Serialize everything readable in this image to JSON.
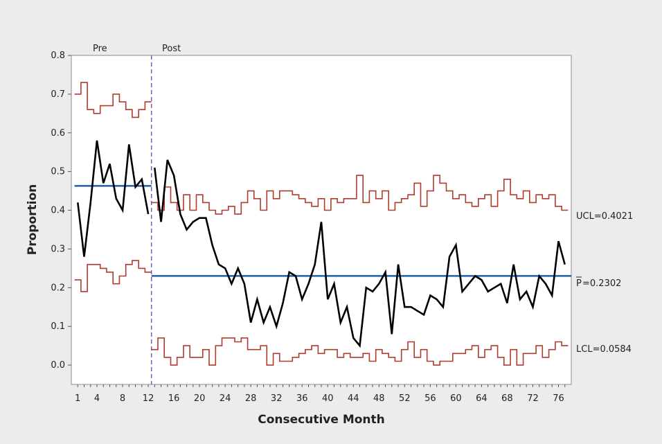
{
  "chart_data": {
    "type": "line",
    "title": "",
    "xlabel": "Consecutive Month",
    "ylabel": "Proportion",
    "xlim": [
      0,
      78
    ],
    "ylim": [
      -0.05,
      0.8
    ],
    "x_ticks": [
      1,
      4,
      8,
      12,
      16,
      20,
      24,
      28,
      32,
      36,
      40,
      44,
      48,
      52,
      56,
      60,
      64,
      68,
      72,
      76
    ],
    "y_ticks": [
      0.0,
      0.1,
      0.2,
      0.3,
      0.4,
      0.5,
      0.6,
      0.7,
      0.8
    ],
    "grid": false,
    "phase_split": 12.5,
    "phase_labels": [
      "Pre",
      "Post"
    ],
    "colors": {
      "proportion": "#000000",
      "limits": "#b03a2e",
      "center": "#1f5fa8",
      "split": "#7a5cb8",
      "background": "#ececec",
      "plot_bg": "#ffffff"
    },
    "series": [
      {
        "name": "Proportion",
        "x": [
          1,
          2,
          3,
          4,
          5,
          6,
          7,
          8,
          9,
          10,
          11,
          12,
          13,
          14,
          15,
          16,
          17,
          18,
          19,
          20,
          21,
          22,
          23,
          24,
          25,
          26,
          27,
          28,
          29,
          30,
          31,
          32,
          33,
          34,
          35,
          36,
          37,
          38,
          39,
          40,
          41,
          42,
          43,
          44,
          45,
          46,
          47,
          48,
          49,
          50,
          51,
          52,
          53,
          54,
          55,
          56,
          57,
          58,
          59,
          60,
          61,
          62,
          63,
          64,
          65,
          66,
          67,
          68,
          69,
          70,
          71,
          72,
          73,
          74,
          75,
          76,
          77
        ],
        "values": [
          0.42,
          0.28,
          0.42,
          0.58,
          0.47,
          0.52,
          0.43,
          0.4,
          0.57,
          0.46,
          0.48,
          0.39,
          0.51,
          0.37,
          0.53,
          0.49,
          0.39,
          0.35,
          0.37,
          0.38,
          0.38,
          0.31,
          0.26,
          0.25,
          0.21,
          0.25,
          0.21,
          0.11,
          0.17,
          0.11,
          0.15,
          0.1,
          0.16,
          0.24,
          0.23,
          0.17,
          0.21,
          0.26,
          0.37,
          0.17,
          0.21,
          0.11,
          0.15,
          0.07,
          0.05,
          0.2,
          0.19,
          0.21,
          0.24,
          0.08,
          0.26,
          0.15,
          0.15,
          0.14,
          0.13,
          0.18,
          0.17,
          0.15,
          0.28,
          0.31,
          0.19,
          0.21,
          0.23,
          0.22,
          0.19,
          0.2,
          0.21,
          0.16,
          0.26,
          0.17,
          0.19,
          0.15,
          0.23,
          0.21,
          0.18,
          0.32,
          0.26
        ]
      },
      {
        "name": "UCL",
        "x": [
          1,
          2,
          3,
          4,
          5,
          6,
          7,
          8,
          9,
          10,
          11,
          12,
          13,
          14,
          15,
          16,
          17,
          18,
          19,
          20,
          21,
          22,
          23,
          24,
          25,
          26,
          27,
          28,
          29,
          30,
          31,
          32,
          33,
          34,
          35,
          36,
          37,
          38,
          39,
          40,
          41,
          42,
          43,
          44,
          45,
          46,
          47,
          48,
          49,
          50,
          51,
          52,
          53,
          54,
          55,
          56,
          57,
          58,
          59,
          60,
          61,
          62,
          63,
          64,
          65,
          66,
          67,
          68,
          69,
          70,
          71,
          72,
          73,
          74,
          75,
          76,
          77
        ],
        "values": [
          0.7,
          0.73,
          0.66,
          0.65,
          0.67,
          0.67,
          0.7,
          0.68,
          0.66,
          0.64,
          0.66,
          0.68,
          0.42,
          0.4,
          0.46,
          0.42,
          0.4,
          0.44,
          0.4,
          0.44,
          0.42,
          0.4,
          0.39,
          0.4,
          0.41,
          0.39,
          0.42,
          0.45,
          0.43,
          0.4,
          0.45,
          0.43,
          0.45,
          0.45,
          0.44,
          0.43,
          0.42,
          0.41,
          0.43,
          0.4,
          0.43,
          0.42,
          0.43,
          0.43,
          0.49,
          0.42,
          0.45,
          0.43,
          0.45,
          0.4,
          0.42,
          0.43,
          0.44,
          0.47,
          0.41,
          0.45,
          0.49,
          0.47,
          0.45,
          0.43,
          0.44,
          0.42,
          0.41,
          0.43,
          0.44,
          0.41,
          0.45,
          0.48,
          0.44,
          0.43,
          0.45,
          0.42,
          0.44,
          0.43,
          0.44,
          0.41,
          0.4
        ]
      },
      {
        "name": "LCL",
        "x": [
          1,
          2,
          3,
          4,
          5,
          6,
          7,
          8,
          9,
          10,
          11,
          12,
          13,
          14,
          15,
          16,
          17,
          18,
          19,
          20,
          21,
          22,
          23,
          24,
          25,
          26,
          27,
          28,
          29,
          30,
          31,
          32,
          33,
          34,
          35,
          36,
          37,
          38,
          39,
          40,
          41,
          42,
          43,
          44,
          45,
          46,
          47,
          48,
          49,
          50,
          51,
          52,
          53,
          54,
          55,
          56,
          57,
          58,
          59,
          60,
          61,
          62,
          63,
          64,
          65,
          66,
          67,
          68,
          69,
          70,
          71,
          72,
          73,
          74,
          75,
          76,
          77
        ],
        "values": [
          0.22,
          0.19,
          0.26,
          0.26,
          0.25,
          0.24,
          0.21,
          0.23,
          0.26,
          0.27,
          0.25,
          0.24,
          0.04,
          0.07,
          0.02,
          0.0,
          0.02,
          0.05,
          0.02,
          0.02,
          0.04,
          0.0,
          0.05,
          0.07,
          0.07,
          0.06,
          0.07,
          0.04,
          0.04,
          0.05,
          0.0,
          0.03,
          0.01,
          0.01,
          0.02,
          0.03,
          0.04,
          0.05,
          0.03,
          0.04,
          0.04,
          0.02,
          0.03,
          0.02,
          0.02,
          0.03,
          0.01,
          0.04,
          0.03,
          0.02,
          0.01,
          0.04,
          0.06,
          0.02,
          0.04,
          0.01,
          0.0,
          0.01,
          0.01,
          0.03,
          0.03,
          0.04,
          0.05,
          0.02,
          0.04,
          0.05,
          0.02,
          0.0,
          0.04,
          0.0,
          0.03,
          0.03,
          0.05,
          0.02,
          0.04,
          0.06,
          0.05
        ]
      }
    ],
    "center_lines": [
      {
        "name": "pre_center",
        "x_from": 1,
        "x_to": 12,
        "y": 0.463
      },
      {
        "name": "post_center",
        "x_from": 12.5,
        "x_to": 77,
        "y": 0.2302
      }
    ],
    "reference_labels": {
      "ucl": "UCL=0.4021",
      "center": "=0.2302",
      "center_symbol": "P",
      "lcl": "LCL=0.0584",
      "ucl_value": 0.4021,
      "center_value": 0.2302,
      "lcl_value": 0.0584
    }
  }
}
